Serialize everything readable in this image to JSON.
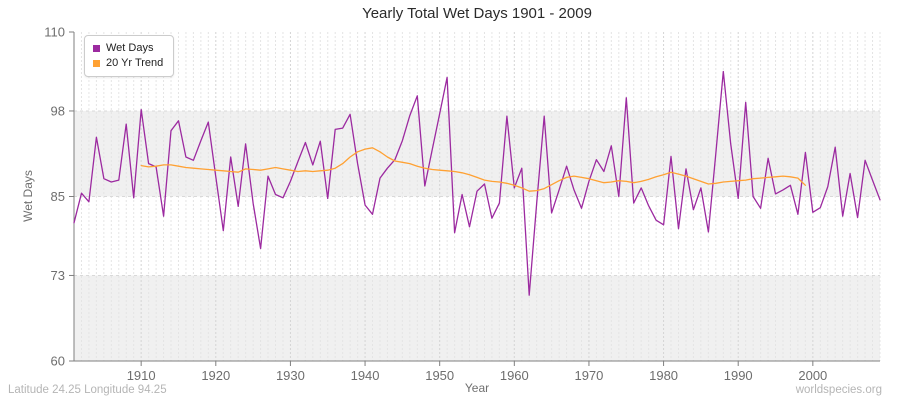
{
  "title": "Yearly Total Wet Days 1901 - 2009",
  "legend": {
    "items": [
      {
        "label": "Wet Days",
        "color": "#9C2AA0"
      },
      {
        "label": "20 Yr Trend",
        "color": "#FFA133"
      }
    ]
  },
  "axes": {
    "y_title": "Wet Days",
    "x_title": "Year"
  },
  "footer": {
    "left": "Latitude 24.25 Longitude 94.25",
    "right": "worldspecies.org"
  },
  "chart_data": {
    "type": "line",
    "title": "Yearly Total Wet Days 1901 - 2009",
    "xlabel": "Year",
    "ylabel": "Wet Days",
    "xlim": [
      1901,
      2009
    ],
    "ylim": [
      60,
      110
    ],
    "y_ticks": [
      60,
      73,
      85,
      98,
      110
    ],
    "x_ticks": [
      1910,
      1920,
      1930,
      1940,
      1950,
      1960,
      1970,
      1980,
      1990,
      2000
    ],
    "grid": "yearly dashed vertical; dashed horizontal at 73/85/98; alternating gray bands",
    "gray_bands": [
      [
        85,
        98
      ],
      [
        60,
        73
      ]
    ],
    "legend_position": "top-left",
    "series": [
      {
        "name": "Wet Days",
        "color": "#9C2AA0",
        "x_start": 1901,
        "x_step": 1,
        "values": [
          81,
          85.5,
          84.2,
          94,
          87.7,
          87.2,
          87.5,
          96,
          84.8,
          98.2,
          90,
          89.5,
          82,
          95,
          96.5,
          91,
          90.5,
          93.5,
          96.3,
          88,
          79.8,
          91,
          83.5,
          93,
          84,
          77.1,
          88.1,
          85.3,
          84.8,
          87.3,
          90.3,
          93.2,
          89.8,
          93.4,
          84.7,
          95.2,
          95.4,
          97.5,
          90,
          83.7,
          82.3,
          87.8,
          89.3,
          90.6,
          93.5,
          97.3,
          100.3,
          86.6,
          92.1,
          97.6,
          103.1,
          79.5,
          85.3,
          80.4,
          85.8,
          86.9,
          81.7,
          84,
          97.2,
          86.3,
          89.3,
          70,
          84,
          97.2,
          82.5,
          86,
          89.6,
          86,
          83.2,
          87.3,
          90.6,
          88.8,
          92.7,
          85,
          100,
          84,
          86.3,
          83.6,
          81.4,
          80.7,
          91.1,
          80.1,
          89.2,
          83,
          86.3,
          79.6,
          91.5,
          104,
          93,
          84.7,
          99.3,
          85,
          83.2,
          90.8,
          85.4,
          86,
          86.7,
          82.3,
          91.7,
          82.6,
          83.3,
          86.5,
          92.5,
          82,
          88.5,
          81.8,
          90.5,
          87.5,
          84.5
        ]
      },
      {
        "name": "20 Yr Trend",
        "color": "#FFA133",
        "x_start": 1910,
        "x_step": 1,
        "values": [
          89.7,
          89.5,
          89.6,
          89.8,
          89.8,
          89.6,
          89.4,
          89.3,
          89.2,
          89.1,
          89.0,
          88.9,
          88.8,
          88.7,
          89.2,
          89.1,
          89.0,
          89.2,
          89.4,
          89.2,
          89.0,
          88.8,
          88.9,
          88.8,
          88.9,
          89.0,
          89.3,
          90.0,
          91.0,
          91.8,
          92.2,
          92.4,
          91.8,
          91.0,
          90.4,
          90.2,
          90.0,
          89.6,
          89.3,
          89.1,
          89.0,
          88.9,
          88.8,
          88.6,
          88.3,
          87.9,
          87.5,
          87.3,
          87.2,
          87.0,
          86.7,
          86.3,
          85.8,
          85.9,
          86.2,
          86.8,
          87.4,
          87.9,
          88.1,
          87.9,
          87.7,
          87.4,
          87.1,
          87.2,
          87.4,
          87.3,
          87.1,
          87.3,
          87.6,
          88.0,
          88.3,
          88.7,
          88.4,
          88.1,
          87.7,
          87.3,
          86.9,
          87.0,
          87.2,
          87.3,
          87.4,
          87.5,
          87.7,
          87.8,
          87.9,
          88.0,
          88.1,
          88.0,
          87.8,
          86.7
        ]
      }
    ]
  }
}
